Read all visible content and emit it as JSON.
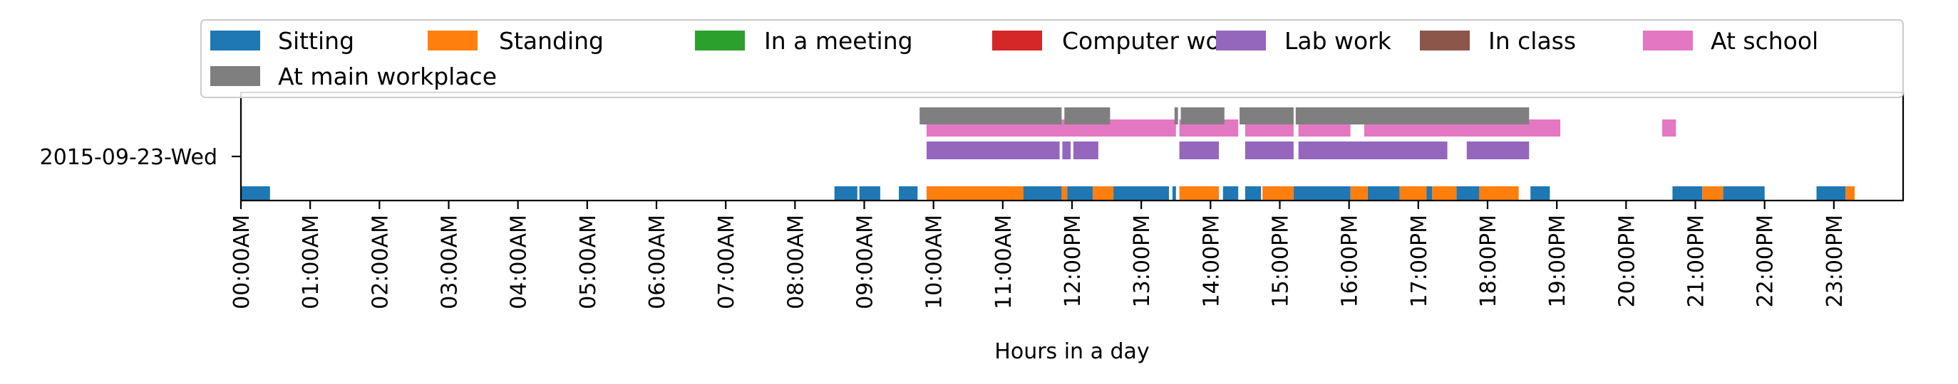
{
  "chart_data": {
    "type": "timeline",
    "title": "",
    "xlabel": "Hours in a day",
    "ylabel": "",
    "xlim": [
      0,
      24
    ],
    "category": "2015-09-23-Wed",
    "x_ticks": [
      "00:00AM",
      "01:00AM",
      "02:00AM",
      "03:00AM",
      "04:00AM",
      "05:00AM",
      "06:00AM",
      "07:00AM",
      "08:00AM",
      "09:00AM",
      "10:00AM",
      "11:00AM",
      "12:00PM",
      "13:00PM",
      "14:00PM",
      "15:00PM",
      "16:00PM",
      "17:00PM",
      "18:00PM",
      "19:00PM",
      "20:00PM",
      "21:00PM",
      "22:00PM",
      "23:00PM"
    ],
    "legend_position": "top",
    "series": [
      {
        "name": "Sitting",
        "color": "#1f77b4",
        "lane": 0,
        "intervals": [
          [
            0.0,
            0.42
          ],
          [
            8.57,
            8.9
          ],
          [
            8.93,
            9.23
          ],
          [
            9.5,
            9.77
          ],
          [
            11.3,
            11.85
          ],
          [
            11.93,
            12.3
          ],
          [
            12.57,
            13.4
          ],
          [
            13.45,
            13.5
          ],
          [
            14.18,
            14.4
          ],
          [
            14.5,
            14.73
          ],
          [
            15.2,
            16.02
          ],
          [
            16.27,
            16.73
          ],
          [
            17.12,
            17.2
          ],
          [
            17.55,
            17.88
          ],
          [
            18.62,
            18.9
          ],
          [
            20.67,
            21.1
          ],
          [
            21.4,
            22.0
          ],
          [
            22.75,
            23.17
          ]
        ]
      },
      {
        "name": "Standing",
        "color": "#ff7f0e",
        "lane": 0,
        "intervals": [
          [
            9.9,
            11.3
          ],
          [
            11.85,
            11.93
          ],
          [
            12.3,
            12.6
          ],
          [
            13.55,
            14.12
          ],
          [
            14.75,
            15.2
          ],
          [
            16.02,
            16.27
          ],
          [
            16.73,
            17.12
          ],
          [
            17.2,
            17.55
          ],
          [
            17.88,
            18.45
          ],
          [
            21.1,
            21.4
          ],
          [
            23.17,
            23.3
          ]
        ]
      },
      {
        "name": "In a meeting",
        "color": "#2ca02c",
        "lane": 0,
        "intervals": []
      },
      {
        "name": "Computer work",
        "color": "#d62728",
        "lane": 0,
        "intervals": []
      },
      {
        "name": "Lab work",
        "color": "#9467bd",
        "lane": 1,
        "intervals": [
          [
            9.9,
            11.82
          ],
          [
            11.86,
            11.98
          ],
          [
            12.02,
            12.38
          ],
          [
            13.55,
            14.12
          ],
          [
            14.5,
            15.2
          ],
          [
            15.27,
            17.42
          ],
          [
            17.7,
            18.6
          ]
        ]
      },
      {
        "name": "In class",
        "color": "#8c564b",
        "lane": 1,
        "intervals": []
      },
      {
        "name": "At school",
        "color": "#e377c2",
        "lane": 2,
        "intervals": [
          [
            9.9,
            13.5
          ],
          [
            13.55,
            14.4
          ],
          [
            14.5,
            15.2
          ],
          [
            15.27,
            16.02
          ],
          [
            16.22,
            19.05
          ],
          [
            20.52,
            20.72
          ]
        ]
      },
      {
        "name": "At main workplace",
        "color": "#7f7f7f",
        "lane": 3,
        "intervals": [
          [
            9.8,
            11.85
          ],
          [
            11.89,
            12.55
          ],
          [
            13.48,
            13.53
          ],
          [
            13.57,
            14.2
          ],
          [
            14.42,
            15.2
          ],
          [
            15.23,
            18.6
          ]
        ]
      }
    ]
  }
}
